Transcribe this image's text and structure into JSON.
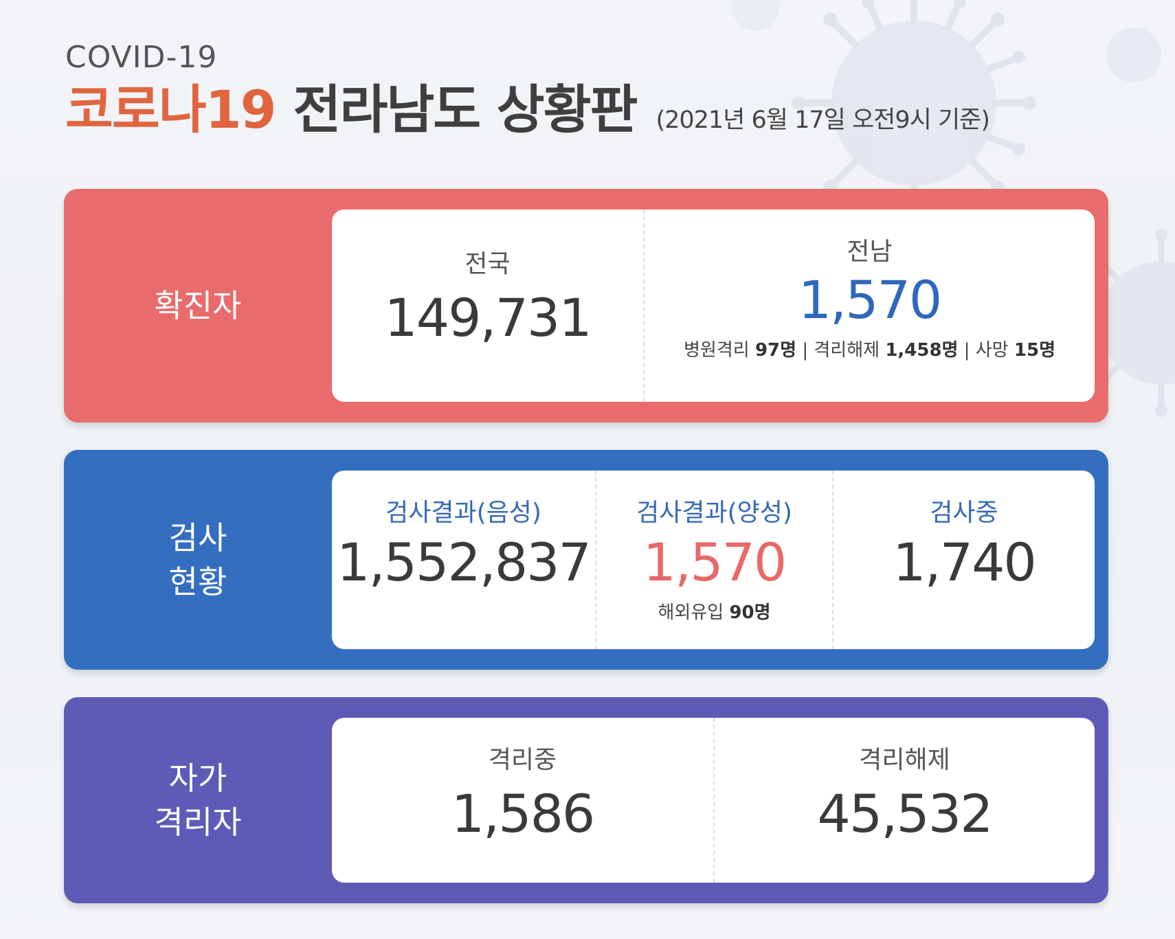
{
  "header": {
    "kicker": "COVID-19",
    "title_accent": "코로나19",
    "title_main": "전라남도 상황판",
    "date_note": "(2021년 6월 17일 오전9시 기준)"
  },
  "colors": {
    "accent_orange": "#e0653f",
    "panel_confirmed": "#ea6b6c",
    "panel_testing": "#336ec1",
    "panel_quarantine": "#5d5bb6",
    "value_blue": "#2f66be",
    "value_red": "#e86869"
  },
  "confirmed": {
    "label": "확진자",
    "national": {
      "label": "전국",
      "value": "149,731"
    },
    "jeonnam": {
      "label": "전남",
      "value": "1,570",
      "breakdown": {
        "hospital_label": "병원격리",
        "hospital_value": "97명",
        "released_label": "격리해제",
        "released_value": "1,458명",
        "death_label": "사망",
        "death_value": "15명",
        "separator": "|"
      }
    }
  },
  "testing": {
    "label_line1": "검사",
    "label_line2": "현황",
    "negative": {
      "label": "검사결과(음성)",
      "value": "1,552,837"
    },
    "positive": {
      "label": "검사결과(양성)",
      "value": "1,570",
      "note_label": "해외유입",
      "note_value": "90명"
    },
    "in_progress": {
      "label": "검사중",
      "value": "1,740"
    }
  },
  "quarantine": {
    "label_line1": "자가",
    "label_line2": "격리자",
    "active": {
      "label": "격리중",
      "value": "1,586"
    },
    "released": {
      "label": "격리해제",
      "value": "45,532"
    }
  }
}
